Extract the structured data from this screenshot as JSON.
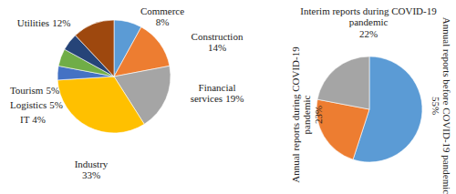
{
  "chart_data": [
    {
      "type": "pie",
      "categories": [
        "Commerce",
        "Construction",
        "Financial services",
        "Industry",
        "IT",
        "Logistics",
        "Tourism",
        "Utilities"
      ],
      "values": [
        8,
        14,
        19,
        33,
        4,
        5,
        5,
        12
      ],
      "value_labels": [
        "8%",
        "14%",
        "19%",
        "33%",
        "4%",
        "5%",
        "5%",
        "12%"
      ],
      "colors": [
        "#5b9bd5",
        "#ed7d31",
        "#a5a5a5",
        "#ffc000",
        "#4472c4",
        "#70ad47",
        "#264478",
        "#9e480e"
      ],
      "data_labels": true
    },
    {
      "type": "pie",
      "categories": [
        "Annual reports before COVID-19 pandemic",
        "Annual reports during COVID-19 pandemic",
        "Interim reports during COVID-19 pandemic"
      ],
      "values": [
        55,
        23,
        22
      ],
      "value_labels": [
        "55%",
        "23%",
        "22%"
      ],
      "colors": [
        "#5b9bd5",
        "#ed7d31",
        "#a5a5a5"
      ],
      "data_labels": true
    }
  ]
}
